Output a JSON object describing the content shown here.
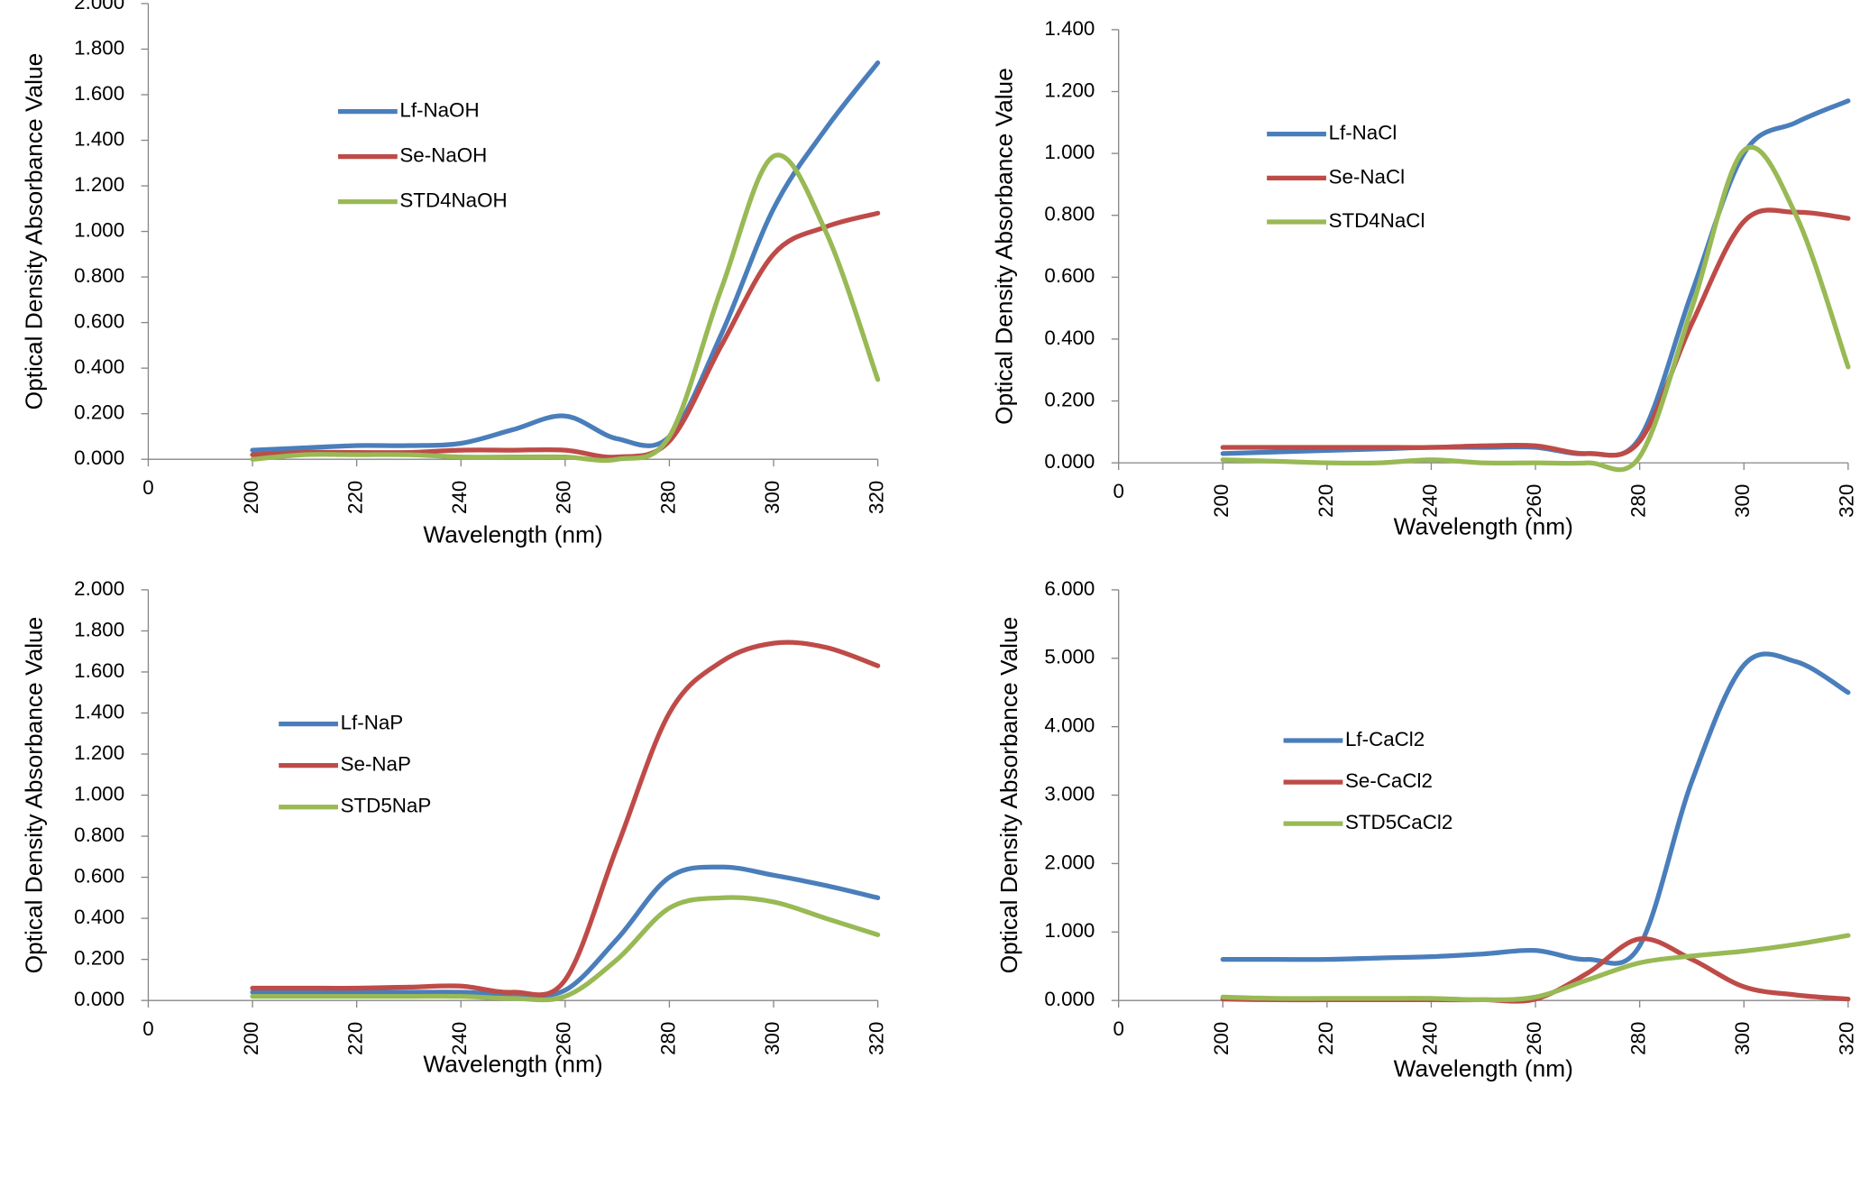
{
  "chart_data": [
    {
      "type": "line",
      "x_label": "Wavelength (nm)",
      "y_label": "Optical Density Absorbance Value",
      "x": [
        200,
        210,
        220,
        230,
        240,
        250,
        260,
        270,
        280,
        290,
        300,
        310,
        320
      ],
      "xlim": [
        180,
        320
      ],
      "xticks": [
        {
          "value": 180,
          "label": "0"
        },
        200,
        220,
        240,
        260,
        280,
        300,
        320
      ],
      "ylim": [
        0,
        2
      ],
      "yticks": [
        {
          "value": 0,
          "label": "0.000"
        },
        {
          "value": 0.2,
          "label": "0.200"
        },
        {
          "value": 0.4,
          "label": "0.400"
        },
        {
          "value": 0.6,
          "label": "0.600"
        },
        {
          "value": 0.8,
          "label": "0.800"
        },
        {
          "value": 1,
          "label": "1.000"
        },
        {
          "value": 1.2,
          "label": "1.200"
        },
        {
          "value": 1.4,
          "label": "1.400"
        },
        {
          "value": 1.6,
          "label": "1.600"
        },
        {
          "value": 1.8,
          "label": "1.800"
        },
        {
          "value": 2,
          "label": "2.000"
        }
      ],
      "series": [
        {
          "name": "Lf-NaOH",
          "color": "#4a7ebb",
          "values": [
            0.04,
            0.05,
            0.06,
            0.06,
            0.07,
            0.13,
            0.19,
            0.09,
            0.1,
            0.55,
            1.1,
            1.45,
            1.74
          ]
        },
        {
          "name": "Se-NaOH",
          "color": "#be4b48",
          "values": [
            0.02,
            0.03,
            0.03,
            0.03,
            0.04,
            0.04,
            0.04,
            0.01,
            0.08,
            0.5,
            0.9,
            1.02,
            1.08
          ]
        },
        {
          "name": "STD4NaOH",
          "color": "#98b954",
          "values": [
            0,
            0.02,
            0.02,
            0.02,
            0.01,
            0.01,
            0.01,
            0,
            0.1,
            0.75,
            1.33,
            1.0,
            0.35
          ]
        }
      ]
    },
    {
      "type": "line",
      "x_label": "Wavelength (nm)",
      "y_label": "Optical Density Absorbance Value",
      "x": [
        200,
        210,
        220,
        230,
        240,
        250,
        260,
        270,
        280,
        290,
        300,
        310,
        320
      ],
      "xlim": [
        180,
        320
      ],
      "xticks": [
        {
          "value": 180,
          "label": "0"
        },
        200,
        220,
        240,
        260,
        280,
        300,
        320
      ],
      "ylim": [
        0,
        1.4
      ],
      "yticks": [
        {
          "value": 0,
          "label": "0.000"
        },
        {
          "value": 0.2,
          "label": "0.200"
        },
        {
          "value": 0.4,
          "label": "0.400"
        },
        {
          "value": 0.6,
          "label": "0.600"
        },
        {
          "value": 0.8,
          "label": "0.800"
        },
        {
          "value": 1,
          "label": "1.000"
        },
        {
          "value": 1.2,
          "label": "1.200"
        },
        {
          "value": 1.4,
          "label": "1.400"
        }
      ],
      "series": [
        {
          "name": "Lf-NaCl",
          "color": "#4a7ebb",
          "values": [
            0.03,
            0.035,
            0.04,
            0.045,
            0.05,
            0.05,
            0.05,
            0.03,
            0.08,
            0.55,
            1.0,
            1.1,
            1.17
          ]
        },
        {
          "name": "Se-NaCl",
          "color": "#be4b48",
          "values": [
            0.05,
            0.05,
            0.05,
            0.05,
            0.05,
            0.055,
            0.055,
            0.03,
            0.07,
            0.45,
            0.78,
            0.81,
            0.79
          ]
        },
        {
          "name": "STD4NaCl",
          "color": "#98b954",
          "values": [
            0.01,
            0.005,
            0,
            0,
            0.01,
            0,
            0,
            0,
            0.02,
            0.5,
            1.01,
            0.8,
            0.31
          ]
        }
      ]
    },
    {
      "type": "line",
      "x_label": "Wavelength (nm)",
      "y_label": "Optical Density Absorbance Value",
      "x": [
        200,
        210,
        220,
        230,
        240,
        250,
        260,
        270,
        280,
        290,
        300,
        310,
        320
      ],
      "xlim": [
        180,
        320
      ],
      "xticks": [
        {
          "value": 180,
          "label": "0"
        },
        200,
        220,
        240,
        260,
        280,
        300,
        320
      ],
      "ylim": [
        0,
        2
      ],
      "yticks": [
        {
          "value": 0,
          "label": "0.000"
        },
        {
          "value": 0.2,
          "label": "0.200"
        },
        {
          "value": 0.4,
          "label": "0.400"
        },
        {
          "value": 0.6,
          "label": "0.600"
        },
        {
          "value": 0.8,
          "label": "0.800"
        },
        {
          "value": 1,
          "label": "1.000"
        },
        {
          "value": 1.2,
          "label": "1.200"
        },
        {
          "value": 1.4,
          "label": "1.400"
        },
        {
          "value": 1.6,
          "label": "1.600"
        },
        {
          "value": 1.8,
          "label": "1.800"
        },
        {
          "value": 2,
          "label": "2.000"
        }
      ],
      "series": [
        {
          "name": "Lf-NaP",
          "color": "#4a7ebb",
          "values": [
            0.04,
            0.04,
            0.04,
            0.04,
            0.04,
            0.03,
            0.05,
            0.3,
            0.6,
            0.65,
            0.61,
            0.56,
            0.5
          ]
        },
        {
          "name": "Se-NaP",
          "color": "#be4b48",
          "values": [
            0.06,
            0.06,
            0.06,
            0.065,
            0.07,
            0.04,
            0.1,
            0.75,
            1.4,
            1.65,
            1.74,
            1.72,
            1.63
          ]
        },
        {
          "name": "STD5NaP",
          "color": "#98b954",
          "values": [
            0.02,
            0.02,
            0.02,
            0.02,
            0.02,
            0.01,
            0.02,
            0.2,
            0.45,
            0.5,
            0.48,
            0.4,
            0.32
          ]
        }
      ]
    },
    {
      "type": "line",
      "x_label": "Wavelength (nm)",
      "y_label": "Optical Density Absorbance Value",
      "x": [
        200,
        210,
        220,
        230,
        240,
        250,
        260,
        270,
        280,
        290,
        300,
        310,
        320
      ],
      "xlim": [
        180,
        320
      ],
      "xticks": [
        {
          "value": 180,
          "label": "0"
        },
        200,
        220,
        240,
        260,
        280,
        300,
        320
      ],
      "ylim": [
        0,
        6
      ],
      "yticks": [
        {
          "value": 0,
          "label": "0.000"
        },
        {
          "value": 1,
          "label": "1.000"
        },
        {
          "value": 2,
          "label": "2.000"
        },
        {
          "value": 3,
          "label": "3.000"
        },
        {
          "value": 4,
          "label": "4.000"
        },
        {
          "value": 5,
          "label": "5.000"
        },
        {
          "value": 6,
          "label": "6.000"
        }
      ],
      "series": [
        {
          "name": "Lf-CaCl2",
          "color": "#4a7ebb",
          "values": [
            0.6,
            0.6,
            0.6,
            0.62,
            0.64,
            0.68,
            0.73,
            0.6,
            0.8,
            3.2,
            4.9,
            4.95,
            4.5
          ]
        },
        {
          "name": "Se-CaCl2",
          "color": "#be4b48",
          "values": [
            0.02,
            0.01,
            0.01,
            0.01,
            0.01,
            0.01,
            0.02,
            0.4,
            0.9,
            0.6,
            0.2,
            0.08,
            0.02
          ]
        },
        {
          "name": "STD5CaCl2",
          "color": "#98b954",
          "values": [
            0.05,
            0.03,
            0.03,
            0.03,
            0.03,
            0.01,
            0.05,
            0.3,
            0.55,
            0.65,
            0.72,
            0.82,
            0.95
          ]
        }
      ]
    }
  ]
}
